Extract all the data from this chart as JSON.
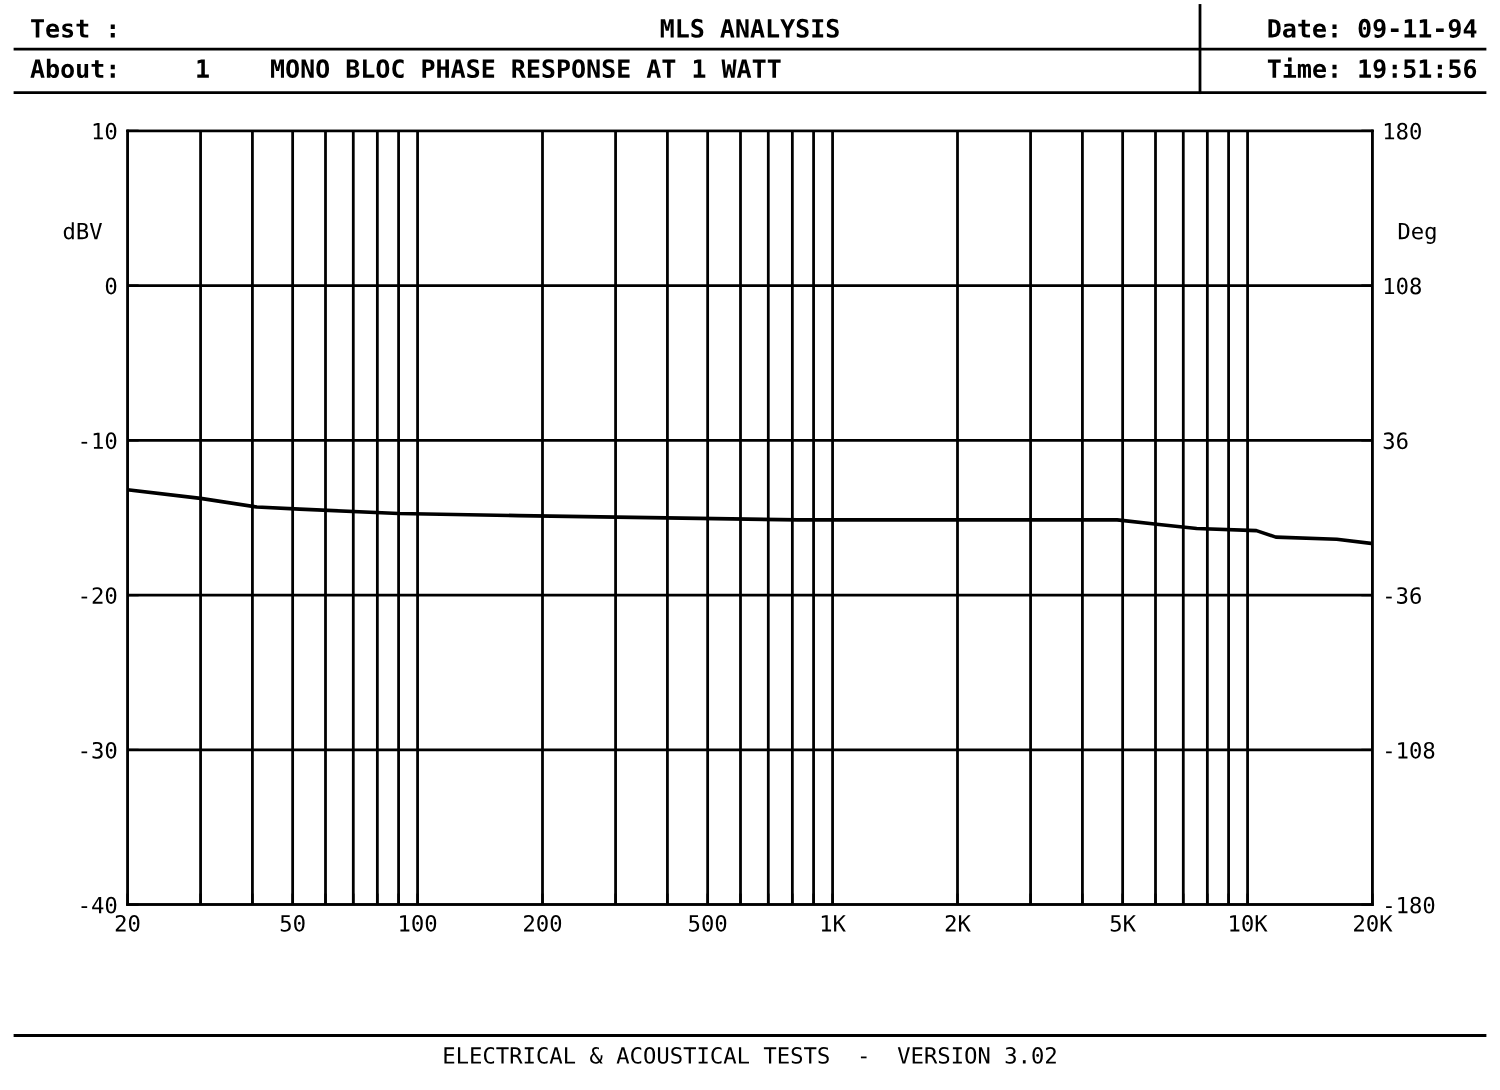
{
  "chart_data": {
    "type": "line",
    "title": "MLS ANALYSIS",
    "subtitle": "MONO BLOC PHASE RESPONSE AT 1 WATT",
    "ylabel": "dBV",
    "y2label": "Deg",
    "annotations": [
      "Test :",
      "About:",
      "1",
      "Date: 09-11-94",
      "Time: 19:51:56",
      "ELECTRICAL & ACOUSTICAL TESTS  -  VERSION 3.02"
    ],
    "log": "x",
    "grid": true,
    "marker": "none",
    "line_style": "solid",
    "xlim": [
      20,
      20000
    ],
    "xticks": [
      20,
      {
        "value": 30,
        "label": null
      },
      {
        "value": 40,
        "label": null
      },
      50,
      {
        "value": 60,
        "label": null
      },
      {
        "value": 70,
        "label": null
      },
      {
        "value": 80,
        "label": null
      },
      {
        "value": 90,
        "label": null
      },
      100,
      200,
      {
        "value": 300,
        "label": null
      },
      {
        "value": 400,
        "label": null
      },
      500,
      {
        "value": 600,
        "label": null
      },
      {
        "value": 700,
        "label": null
      },
      {
        "value": 800,
        "label": null
      },
      {
        "value": 900,
        "label": null
      },
      {
        "value": 1000,
        "label": "1K"
      },
      {
        "value": 2000,
        "label": "2K"
      },
      {
        "value": 3000,
        "label": null
      },
      {
        "value": 4000,
        "label": null
      },
      {
        "value": 5000,
        "label": "5K"
      },
      {
        "value": 6000,
        "label": null
      },
      {
        "value": 7000,
        "label": null
      },
      {
        "value": 8000,
        "label": null
      },
      {
        "value": 9000,
        "label": null
      },
      {
        "value": 10000,
        "label": "10K"
      },
      {
        "value": 20000,
        "label": "20K"
      }
    ],
    "ylim": [
      -40,
      10
    ],
    "yticks": [
      -40,
      -30,
      -20,
      -10,
      0,
      10
    ],
    "y2lim": [
      -180,
      180
    ],
    "y2ticks": [
      -180,
      -108,
      -36,
      36,
      108,
      180
    ],
    "series": [
      {
        "color": "#000000",
        "axis": "y2",
        "x": [
          20,
          30,
          41,
          52,
          90,
          175,
          824,
          4850,
          6040,
          7540,
          10500,
          11700,
          16400,
          20000
        ],
        "values": [
          13,
          9,
          5,
          4,
          2,
          1,
          -1,
          -1,
          -3,
          -5,
          -6,
          -9,
          -10,
          -12
        ]
      }
    ]
  }
}
